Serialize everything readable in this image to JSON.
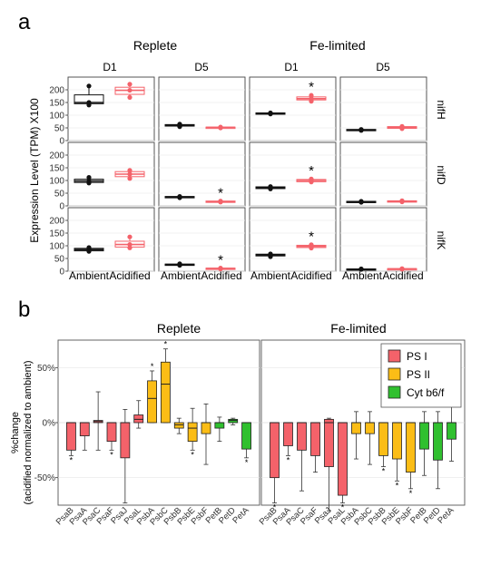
{
  "panel_a": {
    "letter": "a",
    "groups": [
      "Replete",
      "Fe-limited"
    ],
    "days": [
      "D1",
      "D5",
      "D1",
      "D5"
    ],
    "ylabel": "Expression Level (TPM) X100",
    "yticks": [
      "0",
      "50",
      "100",
      "150",
      "200"
    ],
    "xlabels": [
      "Ambient",
      "Acidified"
    ]
  },
  "panel_b": {
    "letter": "b",
    "titles": [
      "Replete",
      "Fe-limited"
    ],
    "ylabel_line1": "%change",
    "ylabel_line2": "(acidified normalized to ambient)",
    "yticks": [
      "-50%",
      "0%",
      "50%"
    ],
    "legend": [
      {
        "label": "PS I",
        "color": "#f4626a"
      },
      {
        "label": "PS II",
        "color": "#fbbd16"
      },
      {
        "label": "Cyt b6/f",
        "color": "#30c02f"
      }
    ]
  },
  "colors": {
    "ambient": "#111111",
    "acidified": "#f4626a",
    "ps1": "#f4626a",
    "ps2": "#fbbd16",
    "cyt": "#30c02f"
  },
  "chart_data": [
    {
      "type": "box",
      "ylim": [
        0,
        250
      ],
      "rows": [
        "nifH",
        "nifD",
        "nifK"
      ],
      "columns": [
        "Replete D1",
        "Replete D5",
        "Fe-limited D1",
        "Fe-limited D5"
      ],
      "categories": [
        "Ambient",
        "Acidified"
      ],
      "cells": [
        {
          "row": "nifH",
          "col": "Replete D1",
          "ambient": {
            "q1": 145,
            "med": 150,
            "q3": 180,
            "min": 138,
            "max": 215,
            "pts": [
              140,
              150,
              215
            ]
          },
          "acidified": {
            "q1": 182,
            "med": 198,
            "q3": 210,
            "min": 170,
            "max": 225,
            "pts": [
              170,
              198,
              222
            ]
          },
          "sig": false
        },
        {
          "row": "nifH",
          "col": "Replete D5",
          "ambient": {
            "q1": 57,
            "med": 60,
            "q3": 63,
            "min": 54,
            "max": 66,
            "pts": [
              55,
              60,
              65
            ]
          },
          "acidified": {
            "q1": 50,
            "med": 52,
            "q3": 53,
            "min": 49,
            "max": 54,
            "pts": [
              50,
              52,
              53
            ]
          },
          "sig": false
        },
        {
          "row": "nifH",
          "col": "Fe-limited D1",
          "ambient": {
            "q1": 105,
            "med": 107,
            "q3": 109,
            "min": 104,
            "max": 110,
            "pts": [
              105,
              107,
              109
            ]
          },
          "acidified": {
            "q1": 160,
            "med": 165,
            "q3": 172,
            "min": 155,
            "max": 180,
            "pts": [
              155,
              165,
              178
            ]
          },
          "sig": true
        },
        {
          "row": "nifH",
          "col": "Fe-limited D5",
          "ambient": {
            "q1": 40,
            "med": 42,
            "q3": 44,
            "min": 38,
            "max": 45,
            "pts": [
              40,
              42,
              44
            ]
          },
          "acidified": {
            "q1": 48,
            "med": 52,
            "q3": 55,
            "min": 46,
            "max": 57,
            "pts": [
              47,
              52,
              56
            ]
          },
          "sig": false
        },
        {
          "row": "nifD",
          "col": "Replete D1",
          "ambient": {
            "q1": 92,
            "med": 98,
            "q3": 105,
            "min": 88,
            "max": 115,
            "pts": [
              90,
              98,
              112
            ]
          },
          "acidified": {
            "q1": 115,
            "med": 125,
            "q3": 135,
            "min": 105,
            "max": 145,
            "pts": [
              108,
              125,
              140
            ]
          },
          "sig": false
        },
        {
          "row": "nifD",
          "col": "Replete D5",
          "ambient": {
            "q1": 33,
            "med": 35,
            "q3": 37,
            "min": 31,
            "max": 38,
            "pts": [
              32,
              35,
              37
            ]
          },
          "acidified": {
            "q1": 15,
            "med": 17,
            "q3": 19,
            "min": 14,
            "max": 20,
            "pts": [
              15,
              17,
              19
            ]
          },
          "sig": true
        },
        {
          "row": "nifD",
          "col": "Fe-limited D1",
          "ambient": {
            "q1": 68,
            "med": 72,
            "q3": 75,
            "min": 66,
            "max": 77,
            "pts": [
              67,
              72,
              76
            ]
          },
          "acidified": {
            "q1": 95,
            "med": 100,
            "q3": 104,
            "min": 92,
            "max": 108,
            "pts": [
              94,
              100,
              106
            ]
          },
          "sig": true
        },
        {
          "row": "nifD",
          "col": "Fe-limited D5",
          "ambient": {
            "q1": 14,
            "med": 16,
            "q3": 18,
            "min": 13,
            "max": 19,
            "pts": [
              14,
              16,
              18
            ]
          },
          "acidified": {
            "q1": 16,
            "med": 18,
            "q3": 20,
            "min": 15,
            "max": 21,
            "pts": [
              16,
              18,
              20
            ]
          },
          "sig": false
        },
        {
          "row": "nifK",
          "col": "Replete D1",
          "ambient": {
            "q1": 80,
            "med": 85,
            "q3": 90,
            "min": 76,
            "max": 95,
            "pts": [
              78,
              85,
              93
            ]
          },
          "acidified": {
            "q1": 95,
            "med": 105,
            "q3": 118,
            "min": 90,
            "max": 140,
            "pts": [
              92,
              105,
              135
            ]
          },
          "sig": false
        },
        {
          "row": "nifK",
          "col": "Replete D5",
          "ambient": {
            "q1": 24,
            "med": 26,
            "q3": 28,
            "min": 22,
            "max": 30,
            "pts": [
              23,
              26,
              29
            ]
          },
          "acidified": {
            "q1": 9,
            "med": 11,
            "q3": 12,
            "min": 8,
            "max": 13,
            "pts": [
              9,
              11,
              12
            ]
          },
          "sig": true
        },
        {
          "row": "nifK",
          "col": "Fe-limited D1",
          "ambient": {
            "q1": 60,
            "med": 63,
            "q3": 67,
            "min": 55,
            "max": 70,
            "pts": [
              57,
              63,
              68
            ]
          },
          "acidified": {
            "q1": 93,
            "med": 98,
            "q3": 102,
            "min": 90,
            "max": 105,
            "pts": [
              91,
              98,
              104
            ]
          },
          "sig": true
        },
        {
          "row": "nifK",
          "col": "Fe-limited D5",
          "ambient": {
            "q1": 7,
            "med": 8,
            "q3": 9,
            "min": 6,
            "max": 10,
            "pts": [
              7,
              8,
              9
            ]
          },
          "acidified": {
            "q1": 8,
            "med": 9,
            "q3": 10,
            "min": 7,
            "max": 11,
            "pts": [
              8,
              9,
              10
            ]
          },
          "sig": false
        }
      ]
    },
    {
      "type": "box",
      "ylim": [
        -75,
        75
      ],
      "unit": "%",
      "categories": [
        "PsaB",
        "PsaA",
        "PsaC",
        "PsaF",
        "PsaJ",
        "PsaL",
        "PsbA",
        "PsbC",
        "PsbB",
        "PsbE",
        "PsbF",
        "PetB",
        "PetD",
        "PetA"
      ],
      "groups": [
        "PS I",
        "PS I",
        "PS I",
        "PS I",
        "PS I",
        "PS I",
        "PS II",
        "PS II",
        "PS II",
        "PS II",
        "PS II",
        "Cyt b6/f",
        "Cyt b6/f",
        "Cyt b6/f"
      ],
      "series": [
        {
          "name": "Replete",
          "boxes": [
            {
              "q1": -25,
              "med": 0,
              "q3": 0,
              "min": -30,
              "max": 0,
              "sig": true
            },
            {
              "q1": -12,
              "med": 0,
              "q3": 0,
              "min": -25,
              "max": 0,
              "sig": false
            },
            {
              "q1": 0,
              "med": 1,
              "q3": 2,
              "min": -25,
              "max": 28,
              "sig": false
            },
            {
              "q1": -17,
              "med": 0,
              "q3": 0,
              "min": -25,
              "max": 0,
              "sig": true
            },
            {
              "q1": -32,
              "med": 0,
              "q3": 0,
              "min": -73,
              "max": 12,
              "sig": false
            },
            {
              "q1": 0,
              "med": 3,
              "q3": 7,
              "min": -5,
              "max": 20,
              "sig": false
            },
            {
              "q1": 0,
              "med": 22,
              "q3": 38,
              "min": 0,
              "max": 47,
              "sig": true
            },
            {
              "q1": 0,
              "med": 35,
              "q3": 55,
              "min": 0,
              "max": 67,
              "sig": true
            },
            {
              "q1": -5,
              "med": -2,
              "q3": 0,
              "min": -10,
              "max": 4,
              "sig": false
            },
            {
              "q1": -17,
              "med": -5,
              "q3": 0,
              "min": -25,
              "max": 13,
              "sig": true
            },
            {
              "q1": -10,
              "med": 0,
              "q3": 0,
              "min": -38,
              "max": 17,
              "sig": false
            },
            {
              "q1": -5,
              "med": 0,
              "q3": 0,
              "min": -17,
              "max": 5,
              "sig": false
            },
            {
              "q1": 0,
              "med": 2,
              "q3": 3,
              "min": -2,
              "max": 4,
              "sig": false
            },
            {
              "q1": -24,
              "med": 0,
              "q3": 0,
              "min": -32,
              "max": 0,
              "sig": true
            }
          ]
        },
        {
          "name": "Fe-limited",
          "boxes": [
            {
              "q1": -50,
              "med": 0,
              "q3": 0,
              "min": -73,
              "max": 0,
              "sig": true
            },
            {
              "q1": -21,
              "med": 0,
              "q3": 0,
              "min": -30,
              "max": 0,
              "sig": true
            },
            {
              "q1": -25,
              "med": 0,
              "q3": 0,
              "min": -62,
              "max": 0,
              "sig": false
            },
            {
              "q1": -30,
              "med": 0,
              "q3": 0,
              "min": -45,
              "max": 0,
              "sig": false
            },
            {
              "q1": -40,
              "med": 0,
              "q3": 3,
              "min": -80,
              "max": 4,
              "sig": false
            },
            {
              "q1": -66,
              "med": 0,
              "q3": 0,
              "min": -73,
              "max": 0,
              "sig": true
            },
            {
              "q1": -10,
              "med": 0,
              "q3": 0,
              "min": -33,
              "max": 10,
              "sig": false
            },
            {
              "q1": -10,
              "med": 0,
              "q3": 0,
              "min": -38,
              "max": 10,
              "sig": false
            },
            {
              "q1": -30,
              "med": 0,
              "q3": 0,
              "min": -40,
              "max": 0,
              "sig": true
            },
            {
              "q1": -33,
              "med": 0,
              "q3": 0,
              "min": -53,
              "max": 0,
              "sig": true
            },
            {
              "q1": -45,
              "med": 0,
              "q3": 0,
              "min": -60,
              "max": 0,
              "sig": true
            },
            {
              "q1": -24,
              "med": 0,
              "q3": 0,
              "min": -48,
              "max": 10,
              "sig": false
            },
            {
              "q1": -34,
              "med": 0,
              "q3": 0,
              "min": -60,
              "max": 10,
              "sig": false
            },
            {
              "q1": -15,
              "med": 0,
              "q3": 0,
              "min": -35,
              "max": 16,
              "sig": false
            }
          ]
        }
      ]
    }
  ]
}
